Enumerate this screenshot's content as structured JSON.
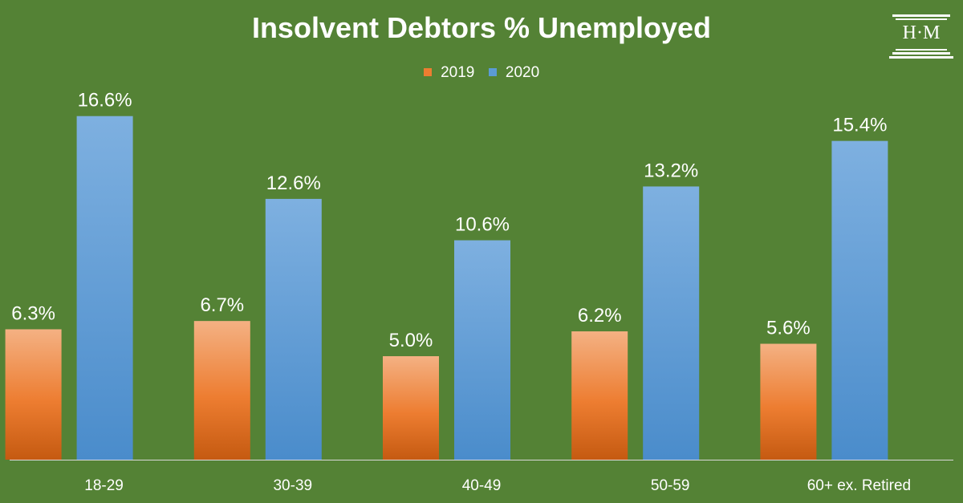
{
  "logo": {
    "text": "H·M"
  },
  "chart_data": {
    "type": "bar",
    "title": "Insolvent Debtors % Unemployed",
    "categories": [
      "18-29",
      "30-39",
      "40-49",
      "50-59",
      "60+ ex. Retired"
    ],
    "series": [
      {
        "name": "2019",
        "values": [
          6.3,
          6.7,
          5.0,
          6.2,
          5.6
        ],
        "color": "#ED7D31"
      },
      {
        "name": "2020",
        "values": [
          16.6,
          12.6,
          10.6,
          13.2,
          15.4
        ],
        "color": "#5B9BD5"
      }
    ],
    "value_format": "percent_1dp",
    "ylim": [
      0,
      18
    ],
    "grid": false,
    "legend_position": "top-center"
  }
}
